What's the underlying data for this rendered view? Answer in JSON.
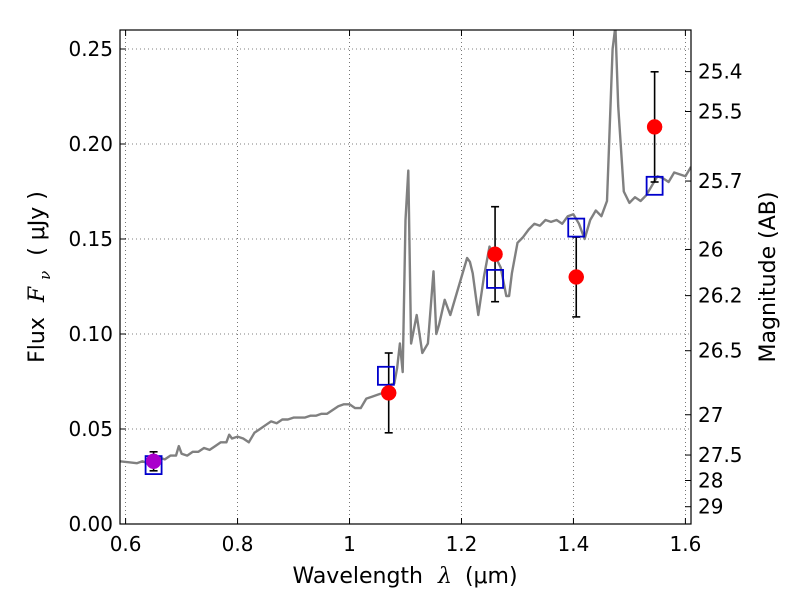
{
  "chart_data": {
    "type": "scatter",
    "xlabel_prefix": "Wavelength",
    "xlabel_symbol": "λ",
    "xlabel_unit": "(μm)",
    "ylabel_prefix": "Flux",
    "ylabel_symbol": "F",
    "ylabel_sub": "ν",
    "ylabel_unit": "( μJy )",
    "y2label": "Magnitude (AB)",
    "xlim": [
      0.59,
      1.61
    ],
    "ylim": [
      0.0,
      0.26
    ],
    "grid": true,
    "xticks": [
      {
        "value": 0.6,
        "label": "0.6"
      },
      {
        "value": 0.8,
        "label": "0.8"
      },
      {
        "value": 1.0,
        "label": "1"
      },
      {
        "value": 1.2,
        "label": "1.2"
      },
      {
        "value": 1.4,
        "label": "1.4"
      },
      {
        "value": 1.6,
        "label": "1.6"
      }
    ],
    "yticks": [
      {
        "value": 0.0,
        "label": "0.00"
      },
      {
        "value": 0.05,
        "label": "0.05"
      },
      {
        "value": 0.1,
        "label": "0.10"
      },
      {
        "value": 0.15,
        "label": "0.15"
      },
      {
        "value": 0.2,
        "label": "0.20"
      },
      {
        "value": 0.25,
        "label": "0.25"
      }
    ],
    "y2ticks": [
      {
        "flux": 0.2381,
        "label": "25.4"
      },
      {
        "flux": 0.2171,
        "label": "25.5"
      },
      {
        "flux": 0.1805,
        "label": "25.7"
      },
      {
        "flux": 0.1445,
        "label": "26"
      },
      {
        "flux": 0.1202,
        "label": "26.2"
      },
      {
        "flux": 0.0912,
        "label": "26.5"
      },
      {
        "flux": 0.0575,
        "label": "27"
      },
      {
        "flux": 0.0363,
        "label": "27.5"
      },
      {
        "flux": 0.0229,
        "label": "28"
      },
      {
        "flux": 0.0091,
        "label": "29"
      }
    ],
    "colors": {
      "spectrum": "#808080",
      "observed": "#ff0000",
      "model": "#0000cc",
      "errorbar": "#000000",
      "overlap": "#aa00cc",
      "grid": "#555555"
    },
    "series": [
      {
        "kind": "line",
        "x": [
          0.59,
          0.62,
          0.63,
          0.64,
          0.65,
          0.66,
          0.67,
          0.68,
          0.69,
          0.695,
          0.7,
          0.71,
          0.72,
          0.73,
          0.74,
          0.75,
          0.76,
          0.77,
          0.78,
          0.785,
          0.79,
          0.8,
          0.81,
          0.82,
          0.83,
          0.84,
          0.85,
          0.86,
          0.87,
          0.88,
          0.89,
          0.9,
          0.91,
          0.92,
          0.93,
          0.94,
          0.95,
          0.96,
          0.97,
          0.98,
          0.99,
          1.0,
          1.01,
          1.02,
          1.03,
          1.04,
          1.05,
          1.06,
          1.07,
          1.08,
          1.085,
          1.09,
          1.095,
          1.1,
          1.105,
          1.11,
          1.12,
          1.125,
          1.13,
          1.14,
          1.15,
          1.155,
          1.16,
          1.17,
          1.18,
          1.19,
          1.2,
          1.21,
          1.215,
          1.22,
          1.23,
          1.24,
          1.25,
          1.26,
          1.27,
          1.28,
          1.285,
          1.29,
          1.3,
          1.31,
          1.32,
          1.33,
          1.34,
          1.35,
          1.36,
          1.37,
          1.38,
          1.39,
          1.4,
          1.41,
          1.42,
          1.43,
          1.44,
          1.45,
          1.46,
          1.47,
          1.475,
          1.48,
          1.49,
          1.5,
          1.51,
          1.52,
          1.53,
          1.54,
          1.55,
          1.56,
          1.57,
          1.58,
          1.59,
          1.6,
          1.61
        ],
        "y": [
          0.033,
          0.032,
          0.033,
          0.032,
          0.033,
          0.035,
          0.034,
          0.036,
          0.036,
          0.041,
          0.037,
          0.036,
          0.038,
          0.038,
          0.04,
          0.039,
          0.041,
          0.043,
          0.043,
          0.047,
          0.045,
          0.046,
          0.045,
          0.043,
          0.048,
          0.05,
          0.052,
          0.054,
          0.053,
          0.055,
          0.055,
          0.056,
          0.056,
          0.056,
          0.057,
          0.057,
          0.058,
          0.058,
          0.06,
          0.062,
          0.063,
          0.063,
          0.061,
          0.061,
          0.066,
          0.067,
          0.068,
          0.069,
          0.073,
          0.074,
          0.082,
          0.095,
          0.08,
          0.16,
          0.186,
          0.095,
          0.11,
          0.1,
          0.09,
          0.095,
          0.133,
          0.1,
          0.105,
          0.118,
          0.11,
          0.12,
          0.13,
          0.14,
          0.138,
          0.132,
          0.11,
          0.13,
          0.146,
          0.141,
          0.135,
          0.12,
          0.12,
          0.132,
          0.148,
          0.151,
          0.155,
          0.158,
          0.157,
          0.16,
          0.159,
          0.16,
          0.158,
          0.162,
          0.163,
          0.158,
          0.15,
          0.16,
          0.165,
          0.162,
          0.17,
          0.25,
          0.262,
          0.22,
          0.175,
          0.169,
          0.172,
          0.17,
          0.173,
          0.178,
          0.183,
          0.182,
          0.18,
          0.185,
          0.184,
          0.183,
          0.188
        ]
      },
      {
        "kind": "points",
        "style": "filled-circle",
        "x": [
          0.65,
          1.07,
          1.26,
          1.405,
          1.545
        ],
        "y": [
          0.033,
          0.069,
          0.142,
          0.13,
          0.209
        ],
        "err": [
          0.005,
          0.021,
          0.025,
          0.021,
          0.029
        ]
      },
      {
        "kind": "points",
        "style": "open-square",
        "x": [
          0.65,
          1.065,
          1.26,
          1.405,
          1.545
        ],
        "y": [
          0.031,
          0.078,
          0.129,
          0.156,
          0.178
        ]
      }
    ]
  }
}
